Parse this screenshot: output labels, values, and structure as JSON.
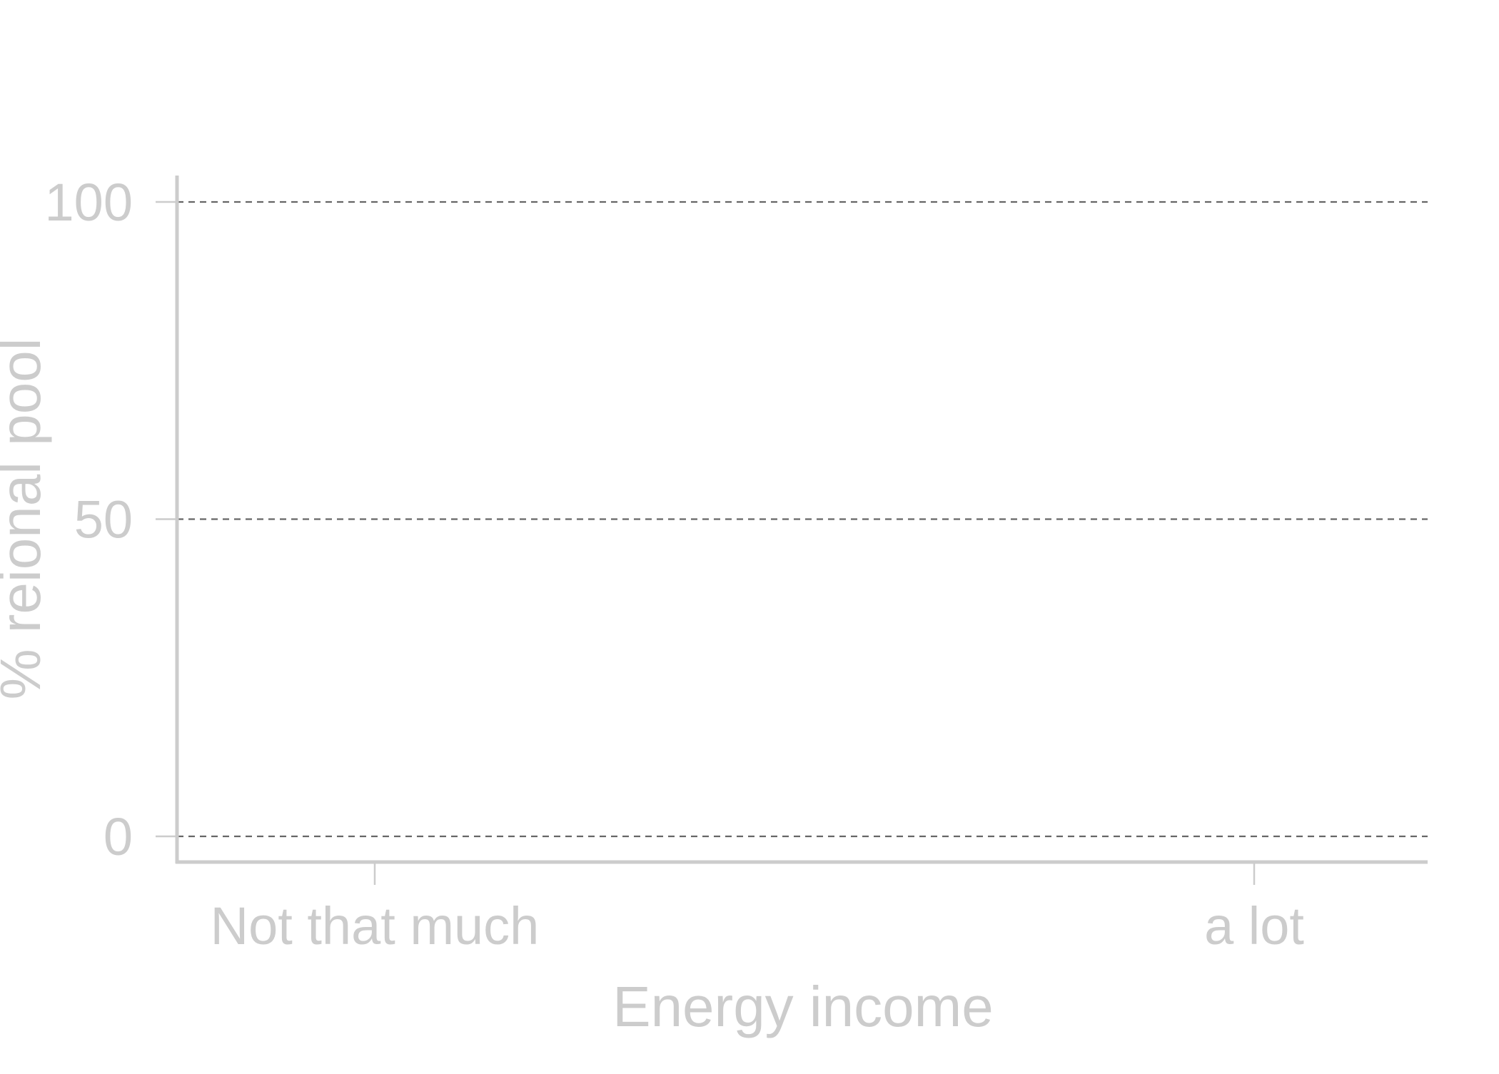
{
  "chart_data": {
    "type": "bar",
    "categories": [
      "Not that much",
      "a lot"
    ],
    "series": [
      {
        "values": [
          null,
          null
        ]
      }
    ],
    "xlabel": "Energy income",
    "ylabel": "% reional pool",
    "yticks": [
      0,
      50,
      100
    ],
    "ytick_labels": [
      "0",
      "50",
      "100"
    ],
    "ylim": [
      -4,
      104
    ],
    "grid": "horizontal dashed at y ticks",
    "legend": "none"
  },
  "colors": {
    "axis": "#cccccc",
    "text": "#cccccc",
    "grid": "#666666",
    "background": "#ffffff"
  }
}
